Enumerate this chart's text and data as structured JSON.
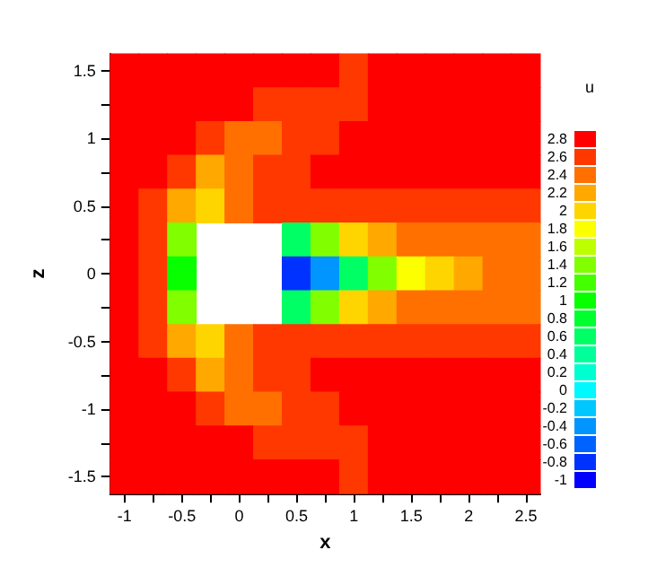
{
  "chart_data": {
    "type": "heatmap",
    "xlabel": "x",
    "ylabel": "z",
    "clabel": "u",
    "categories": [
      "-1",
      null,
      "-0.5",
      null,
      "0",
      null,
      "0.5",
      null,
      "1",
      null,
      "1.5",
      null,
      "2",
      null,
      "2.5"
    ],
    "y_categories": [
      "1.5",
      null,
      "1",
      null,
      "0.5",
      null,
      "0",
      null,
      "-0.5",
      null,
      "-1",
      null,
      "-1.5"
    ],
    "cells": [
      [
        2.8,
        2.8,
        2.8,
        2.8,
        2.8,
        2.8,
        2.8,
        2.8,
        2.6,
        2.8,
        2.8,
        2.8,
        2.8,
        2.8,
        2.8
      ],
      [
        2.8,
        2.8,
        2.8,
        2.8,
        2.8,
        2.6,
        2.6,
        2.6,
        2.6,
        2.8,
        2.8,
        2.8,
        2.8,
        2.8,
        2.8
      ],
      [
        2.8,
        2.8,
        2.8,
        2.6,
        2.4,
        2.4,
        2.6,
        2.6,
        2.8,
        2.8,
        2.8,
        2.8,
        2.8,
        2.8,
        2.8
      ],
      [
        2.8,
        2.8,
        2.6,
        2.2,
        2.4,
        2.6,
        2.6,
        2.8,
        2.8,
        2.8,
        2.8,
        2.8,
        2.8,
        2.8,
        2.8
      ],
      [
        2.8,
        2.6,
        2.2,
        2.0,
        2.4,
        2.6,
        2.6,
        2.6,
        2.6,
        2.6,
        2.6,
        2.6,
        2.6,
        2.6,
        2.6
      ],
      [
        2.8,
        2.6,
        1.4,
        null,
        null,
        null,
        0.6,
        1.4,
        2.0,
        2.2,
        2.4,
        2.4,
        2.4,
        2.4,
        2.4
      ],
      [
        2.8,
        2.6,
        1.0,
        null,
        null,
        null,
        -0.8,
        -0.4,
        0.6,
        1.4,
        1.8,
        2.0,
        2.2,
        2.4,
        2.4
      ],
      [
        2.8,
        2.6,
        1.4,
        null,
        null,
        null,
        0.6,
        1.4,
        2.0,
        2.2,
        2.4,
        2.4,
        2.4,
        2.4,
        2.4
      ],
      [
        2.8,
        2.6,
        2.2,
        2.0,
        2.4,
        2.6,
        2.6,
        2.6,
        2.6,
        2.6,
        2.6,
        2.6,
        2.6,
        2.6,
        2.6
      ],
      [
        2.8,
        2.8,
        2.6,
        2.2,
        2.4,
        2.6,
        2.6,
        2.8,
        2.8,
        2.8,
        2.8,
        2.8,
        2.8,
        2.8,
        2.8
      ],
      [
        2.8,
        2.8,
        2.8,
        2.6,
        2.4,
        2.4,
        2.6,
        2.6,
        2.8,
        2.8,
        2.8,
        2.8,
        2.8,
        2.8,
        2.8
      ],
      [
        2.8,
        2.8,
        2.8,
        2.8,
        2.8,
        2.6,
        2.6,
        2.6,
        2.6,
        2.8,
        2.8,
        2.8,
        2.8,
        2.8,
        2.8
      ],
      [
        2.8,
        2.8,
        2.8,
        2.8,
        2.8,
        2.8,
        2.8,
        2.8,
        2.6,
        2.8,
        2.8,
        2.8,
        2.8,
        2.8,
        2.8
      ]
    ],
    "clim": [
      -1,
      2.8
    ],
    "cticks": [
      -1,
      -0.8,
      -0.6,
      -0.4,
      -0.2,
      0,
      0.2,
      0.4,
      0.6,
      0.8,
      1,
      1.2,
      1.4,
      1.6,
      1.8,
      2,
      2.2,
      2.4,
      2.6,
      2.8
    ]
  }
}
